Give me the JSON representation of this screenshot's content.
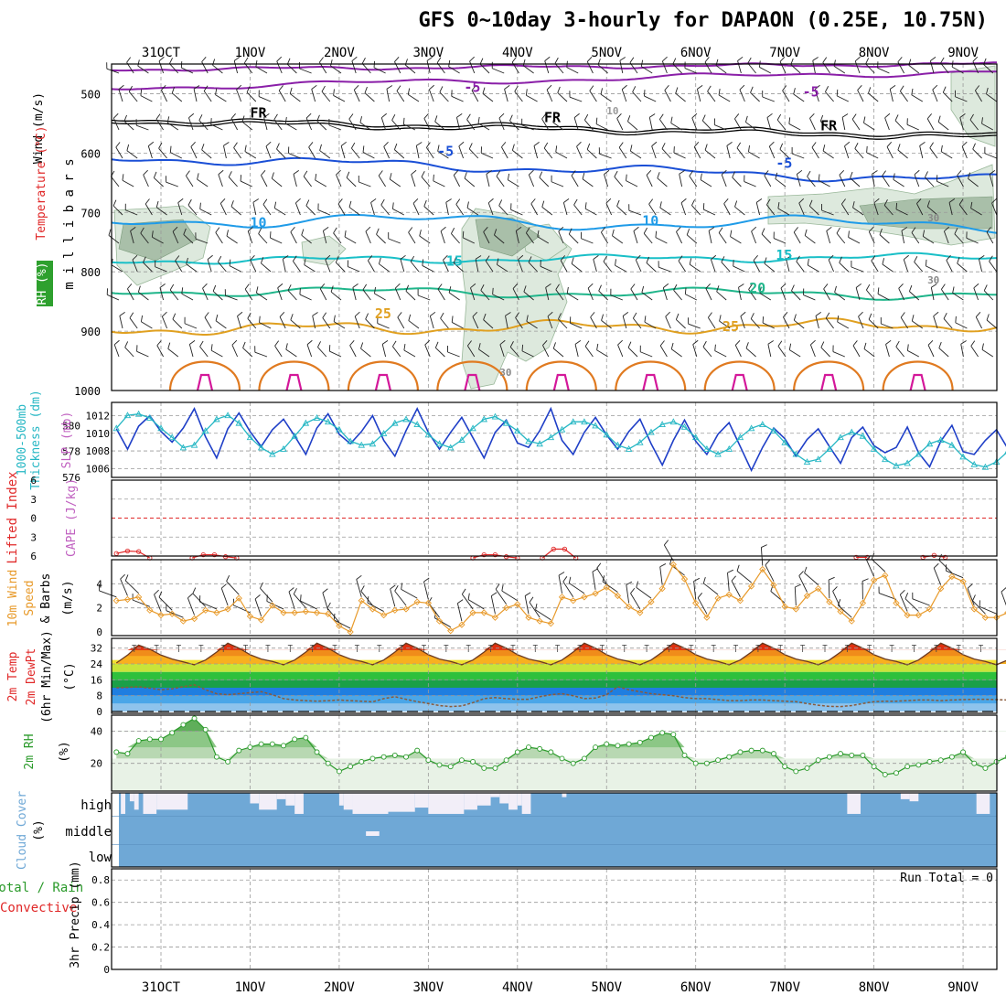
{
  "title": "GFS 0~10day 3-hourly for DAPAON (0.25E, 10.75N)",
  "colors": {
    "purple": "#8a1fa8",
    "blue": "#1a4fd6",
    "lightblue": "#1f9be8",
    "cyan": "#19bfc7",
    "green": "#1fb58a",
    "orange": "#e0a020",
    "darkorange": "#e07a20",
    "magenta": "#d4189a",
    "slp": "#1f3fc7",
    "thick": "#26b7c4",
    "li": "#e02828",
    "cape": "#c060c0",
    "wind": "#e89a2a",
    "rh": "#2a9a2a",
    "cloud": "#6fa8d6",
    "grid": "#9a9a9a"
  },
  "chart_data": [
    {
      "name": "upper-air",
      "type": "contour",
      "ylabel": "m i l l i b a r s",
      "side_labels": [
        "Wind (m/s)",
        "Temperature (°C)",
        "RH (%)"
      ],
      "ylim": [
        450,
        1000
      ],
      "y_ticks": [
        "500",
        "600",
        "700",
        "800",
        "900",
        "1000"
      ],
      "x_labels": [
        "31OCT",
        "1NOV",
        "2NOV",
        "3NOV",
        "4NOV",
        "5NOV",
        "6NOV",
        "7NOV",
        "8NOV",
        "9NOV"
      ],
      "contour_labels": [
        {
          "text": "-5",
          "day": 3.4,
          "p": 497
        },
        {
          "text": "-5",
          "day": 7.2,
          "p": 505
        },
        {
          "text": "FR",
          "day": 1.0,
          "p": 540
        },
        {
          "text": "FR",
          "day": 4.3,
          "p": 548
        },
        {
          "text": "FR",
          "day": 7.4,
          "p": 562
        },
        {
          "text": "-5",
          "day": 3.1,
          "p": 605
        },
        {
          "text": "-5",
          "day": 6.9,
          "p": 625
        },
        {
          "text": "10",
          "day": 1.0,
          "p": 725
        },
        {
          "text": "10",
          "day": 5.4,
          "p": 722
        },
        {
          "text": "15",
          "day": 3.2,
          "p": 790
        },
        {
          "text": "15",
          "day": 6.9,
          "p": 780
        },
        {
          "text": "20",
          "day": 6.6,
          "p": 835
        },
        {
          "text": "25",
          "day": 2.4,
          "p": 878
        },
        {
          "text": "25",
          "day": 6.3,
          "p": 900
        },
        {
          "text": "10",
          "day": 5.0,
          "p": 535
        },
        {
          "text": "30",
          "day": 8.6,
          "p": 715
        },
        {
          "text": "30",
          "day": 8.6,
          "p": 820
        },
        {
          "text": "30",
          "day": 3.8,
          "p": 975
        }
      ]
    },
    {
      "name": "slp-thickness",
      "type": "line",
      "left_labels": [
        "1000-500mb",
        "Thickness (dm)"
      ],
      "right_label": "SLP (mb)",
      "thick_ticks": [
        "580",
        "578",
        "576"
      ],
      "slp_ticks": [
        "1012",
        "1010",
        "1008",
        "1006"
      ],
      "series": [
        {
          "name": "SLP",
          "values": [
            1010.5,
            1008.2,
            1010.8,
            1012,
            1010.2,
            1009,
            1010.6,
            1012.8,
            1009.6,
            1007.2,
            1010.5,
            1012.3,
            1010.2,
            1008.5,
            1010.4,
            1011.6,
            1009.7,
            1007.6,
            1010.6,
            1012.2,
            1009.9,
            1008.8,
            1010.2,
            1012,
            1009.2,
            1007.4,
            1010.3,
            1012.8,
            1010.1,
            1008.2,
            1010.1,
            1011.8,
            1009.5,
            1007.2,
            1010.1,
            1011.5,
            1008.9,
            1008.4,
            1010.3,
            1012.8,
            1009.2,
            1007.6,
            1010.1,
            1011.8,
            1009.8,
            1008.2,
            1010.2,
            1011.6,
            1008.8,
            1006.4,
            1009.2,
            1011.5,
            1009.1,
            1007.6,
            1009.9,
            1011.2,
            1008.5,
            1005.8,
            1008.4,
            1010.6,
            1009.4,
            1007.4,
            1009.3,
            1010.5,
            1008.5,
            1006.6,
            1009.5,
            1010.7,
            1008.6,
            1007.8,
            1008.4,
            1010.7,
            1007.8,
            1006.2,
            1009.1,
            1010.9,
            1007.9,
            1007.6,
            1009.2,
            1010.4,
            1008.3,
            1006.6,
            1009.1,
            1011.9
          ]
        },
        {
          "name": "Thickness",
          "values": [
            579.8,
            580.8,
            580.9,
            580.6,
            579.8,
            579.1,
            578.3,
            578.5,
            579.6,
            580.5,
            580.8,
            580.2,
            579.1,
            578.3,
            577.8,
            578.2,
            579.2,
            580.2,
            580.6,
            580.3,
            579.7,
            578.8,
            578.5,
            578.6,
            579.4,
            580.2,
            580.5,
            580.1,
            579.3,
            578.6,
            578.3,
            578.9,
            579.8,
            580.5,
            580.7,
            580.2,
            579.6,
            578.8,
            578.6,
            579.1,
            579.7,
            580.3,
            580.3,
            580.0,
            579.3,
            578.5,
            578.2,
            578.7,
            579.5,
            580.1,
            580.3,
            579.9,
            579.1,
            578.2,
            577.8,
            578.2,
            579.1,
            579.8,
            580.1,
            579.6,
            578.7,
            577.8,
            577.2,
            577.4,
            578.2,
            579.1,
            579.5,
            579.2,
            578.2,
            577.4,
            576.9,
            577.1,
            577.8,
            578.6,
            578.9,
            578.5,
            577.6,
            577.0,
            576.8,
            577.2,
            578.0,
            577.8,
            576.8,
            576.2
          ]
        }
      ]
    },
    {
      "name": "lifted-index-cape",
      "type": "line",
      "left_labels": [
        "Lifted Index",
        "CAPE (J/kg)"
      ],
      "y_ticks": [
        "-6",
        "-3",
        "0",
        "3",
        "6"
      ],
      "segments": [
        {
          "day": -0.5,
          "values": [
            5.6,
            5.2,
            5.3,
            6.3
          ]
        },
        {
          "day": 0.35,
          "values": [
            6.3,
            5.8,
            5.8,
            6.1,
            6.3
          ]
        },
        {
          "day": 3.5,
          "values": [
            6.3,
            5.8,
            5.8,
            6.1,
            6.3
          ]
        },
        {
          "day": 4.28,
          "values": [
            6.3,
            4.9,
            4.9,
            6.3
          ]
        },
        {
          "day": 7.8,
          "values": [
            6.2,
            6.2
          ]
        },
        {
          "day": 8.55,
          "values": [
            6.2,
            5.9,
            6.2
          ]
        }
      ]
    },
    {
      "name": "wind10m",
      "type": "line",
      "left_labels": [
        "10m Wind",
        "Speed",
        "& Barbs",
        "(m/s)"
      ],
      "y_ticks": [
        "0",
        "2",
        "4"
      ],
      "values": [
        2.6,
        2.7,
        2.9,
        1.8,
        1.4,
        1.5,
        0.9,
        1.1,
        1.8,
        1.6,
        1.9,
        2.8,
        1.3,
        1.0,
        2.2,
        1.6,
        1.6,
        1.7,
        1.6,
        1.5,
        0.5,
        0.0,
        2.6,
        1.9,
        1.4,
        1.8,
        1.9,
        2.5,
        2.4,
        0.9,
        0.1,
        0.6,
        1.6,
        1.6,
        1.2,
        2.0,
        2.3,
        1.2,
        0.9,
        0.7,
        2.9,
        2.6,
        2.9,
        3.2,
        3.7,
        3.0,
        2.1,
        1.6,
        2.5,
        3.6,
        5.6,
        4.4,
        2.4,
        1.2,
        2.8,
        3.1,
        2.6,
        3.8,
        5.2,
        3.9,
        2.1,
        1.9,
        3.0,
        3.6,
        2.5,
        1.7,
        0.9,
        2.4,
        4.3,
        4.7,
        2.4,
        1.4,
        1.4,
        1.9,
        3.6,
        4.6,
        4.2,
        1.9,
        1.2,
        1.2,
        1.6,
        1.7,
        1.9,
        2.8
      ]
    },
    {
      "name": "temp-dewpt",
      "type": "area",
      "left_labels": [
        "2m Temp",
        "2m DewPt",
        "(6hr Min/Max)",
        "(°C)"
      ],
      "y_ticks": [
        "0",
        "8",
        "16",
        "24",
        "32"
      ],
      "temp_values": [
        24.5,
        28.5,
        33.5,
        31.5,
        28.5,
        26.5,
        25,
        23.6,
        26,
        30,
        34.5,
        32,
        28.7,
        26.5,
        25.3,
        23.6,
        26,
        30,
        34.5,
        32,
        28.7,
        26.5,
        25.3,
        23.6,
        26,
        30,
        34.5,
        32,
        28.7,
        26.5,
        25.3,
        23.6,
        26,
        30,
        34.5,
        32,
        28.7,
        26.5,
        25.3,
        23.6,
        26,
        30,
        34.5,
        32,
        28.7,
        26.5,
        25.3,
        23.6,
        26,
        30,
        34.5,
        32,
        28.7,
        26.5,
        25.3,
        23.6,
        26,
        30,
        34.5,
        32,
        28.7,
        26.5,
        25.3,
        23.6,
        26,
        30,
        34.5,
        32,
        28.7,
        26.5,
        25.3,
        23.6,
        26,
        30,
        34.5,
        32,
        28.7,
        26.5,
        25.3,
        23.6,
        26,
        30,
        34.5,
        32,
        28.7,
        26.5,
        25.3,
        23.6
      ],
      "dewpt_values": [
        12,
        12.2,
        12.5,
        11.8,
        11,
        11.5,
        12.5,
        13.5,
        11,
        9,
        8.5,
        9,
        9.5,
        10,
        8.5,
        6.5,
        5.8,
        5.5,
        5.2,
        5.5,
        5.8,
        5.5,
        5.2,
        4.9,
        6.5,
        7.5,
        6.2,
        5,
        4,
        3,
        2.5,
        2.8,
        4.5,
        6.5,
        7,
        6.5,
        6.2,
        6.2,
        7.5,
        8.5,
        9,
        8,
        6.5,
        6.8,
        8.5,
        12.5,
        11,
        10,
        9,
        8.5,
        8,
        7,
        6.5,
        6.5,
        6,
        5.5,
        5.5,
        5.8,
        5.8,
        5.5,
        5.2,
        5,
        4,
        3.2,
        2.6,
        2.5,
        3,
        4,
        5,
        5.2,
        5.2,
        5.5,
        5.8,
        5.8,
        5.5,
        5.8,
        6,
        6.2,
        6.2,
        6,
        5.8,
        5.8,
        5.5,
        5.6
      ]
    },
    {
      "name": "rh2m",
      "type": "area",
      "left_labels": [
        "2m RH",
        "(%)"
      ],
      "y_ticks": [
        "20",
        "40"
      ],
      "values": [
        27,
        26,
        34,
        35,
        35,
        39,
        44,
        48,
        41,
        24,
        21,
        28,
        30,
        32,
        32,
        31,
        35,
        36,
        27,
        20,
        15,
        18,
        21,
        23,
        24,
        25,
        24,
        28,
        22,
        19,
        18,
        22,
        21,
        17,
        17,
        22,
        27,
        30,
        29,
        27,
        23,
        20,
        23,
        30,
        32,
        31,
        32,
        33,
        36,
        39,
        38,
        25,
        20,
        20,
        22,
        24,
        27,
        28,
        28,
        26,
        18,
        15,
        17,
        22,
        24,
        26,
        25,
        25,
        18,
        13,
        14,
        18,
        19,
        21,
        22,
        24,
        27,
        20,
        17,
        21,
        24,
        26,
        28,
        29,
        30,
        16,
        14,
        21,
        24,
        26,
        27,
        29,
        31
      ]
    },
    {
      "name": "cloud",
      "type": "bar",
      "left_labels": [
        "Cloud Cover",
        "(%)"
      ],
      "row_labels": [
        "high",
        "middle",
        "low"
      ],
      "gaps": [
        {
          "day": -0.45,
          "w": 0.05,
          "h": 1
        },
        {
          "day": -0.35,
          "w": 0.05,
          "h": 0.4
        },
        {
          "day": -0.3,
          "w": 0.05,
          "h": 0.8
        },
        {
          "day": -0.2,
          "w": 0.15,
          "h": 1
        },
        {
          "day": -0.05,
          "w": 0.35,
          "h": 0.8
        },
        {
          "day": 1.0,
          "w": 0.1,
          "h": 0.5
        },
        {
          "day": 1.1,
          "w": 0.2,
          "h": 0.8
        },
        {
          "day": 1.3,
          "w": 0.1,
          "h": 0.3
        },
        {
          "day": 1.4,
          "w": 0.1,
          "h": 0.6
        },
        {
          "day": 1.5,
          "w": 0.1,
          "h": 1
        },
        {
          "day": 2.0,
          "w": 0.05,
          "h": 0.6
        },
        {
          "day": 2.05,
          "w": 0.1,
          "h": 0.8
        },
        {
          "day": 2.15,
          "w": 0.4,
          "h": 1
        },
        {
          "day": 2.55,
          "w": 0.3,
          "h": 0.9
        },
        {
          "day": 2.85,
          "w": 0.15,
          "h": 0.7
        },
        {
          "day": 3.0,
          "w": 0.4,
          "h": 1
        },
        {
          "day": 3.4,
          "w": 0.15,
          "h": 0.8
        },
        {
          "day": 3.55,
          "w": 0.15,
          "h": 0.6
        },
        {
          "day": 3.7,
          "w": 0.1,
          "h": 0.2
        },
        {
          "day": 3.8,
          "w": 0.1,
          "h": 0.5
        },
        {
          "day": 3.9,
          "w": 0.1,
          "h": 0.8
        },
        {
          "day": 4.0,
          "w": 0.05,
          "h": 0.6
        },
        {
          "day": 4.05,
          "w": 0.1,
          "h": 1
        },
        {
          "day": 4.5,
          "w": 0.05,
          "h": 0.2
        },
        {
          "day": 7.7,
          "w": 0.15,
          "h": 1
        },
        {
          "day": 8.3,
          "w": 0.1,
          "h": 0.3
        },
        {
          "day": 8.4,
          "w": 0.1,
          "h": 0.4
        },
        {
          "day": 9.15,
          "w": 0.15,
          "h": 1
        }
      ],
      "middle_gaps": [
        {
          "day": 2.3,
          "w": 0.15
        }
      ]
    },
    {
      "name": "precip",
      "type": "bar",
      "left_labels": [
        "Total / Rain",
        "Convective",
        "3hr Precip (mm)"
      ],
      "y_ticks": [
        "0",
        "0.2",
        "0.4",
        "0.6",
        "0.8"
      ],
      "run_total": "Run Total = 0",
      "values": []
    }
  ]
}
